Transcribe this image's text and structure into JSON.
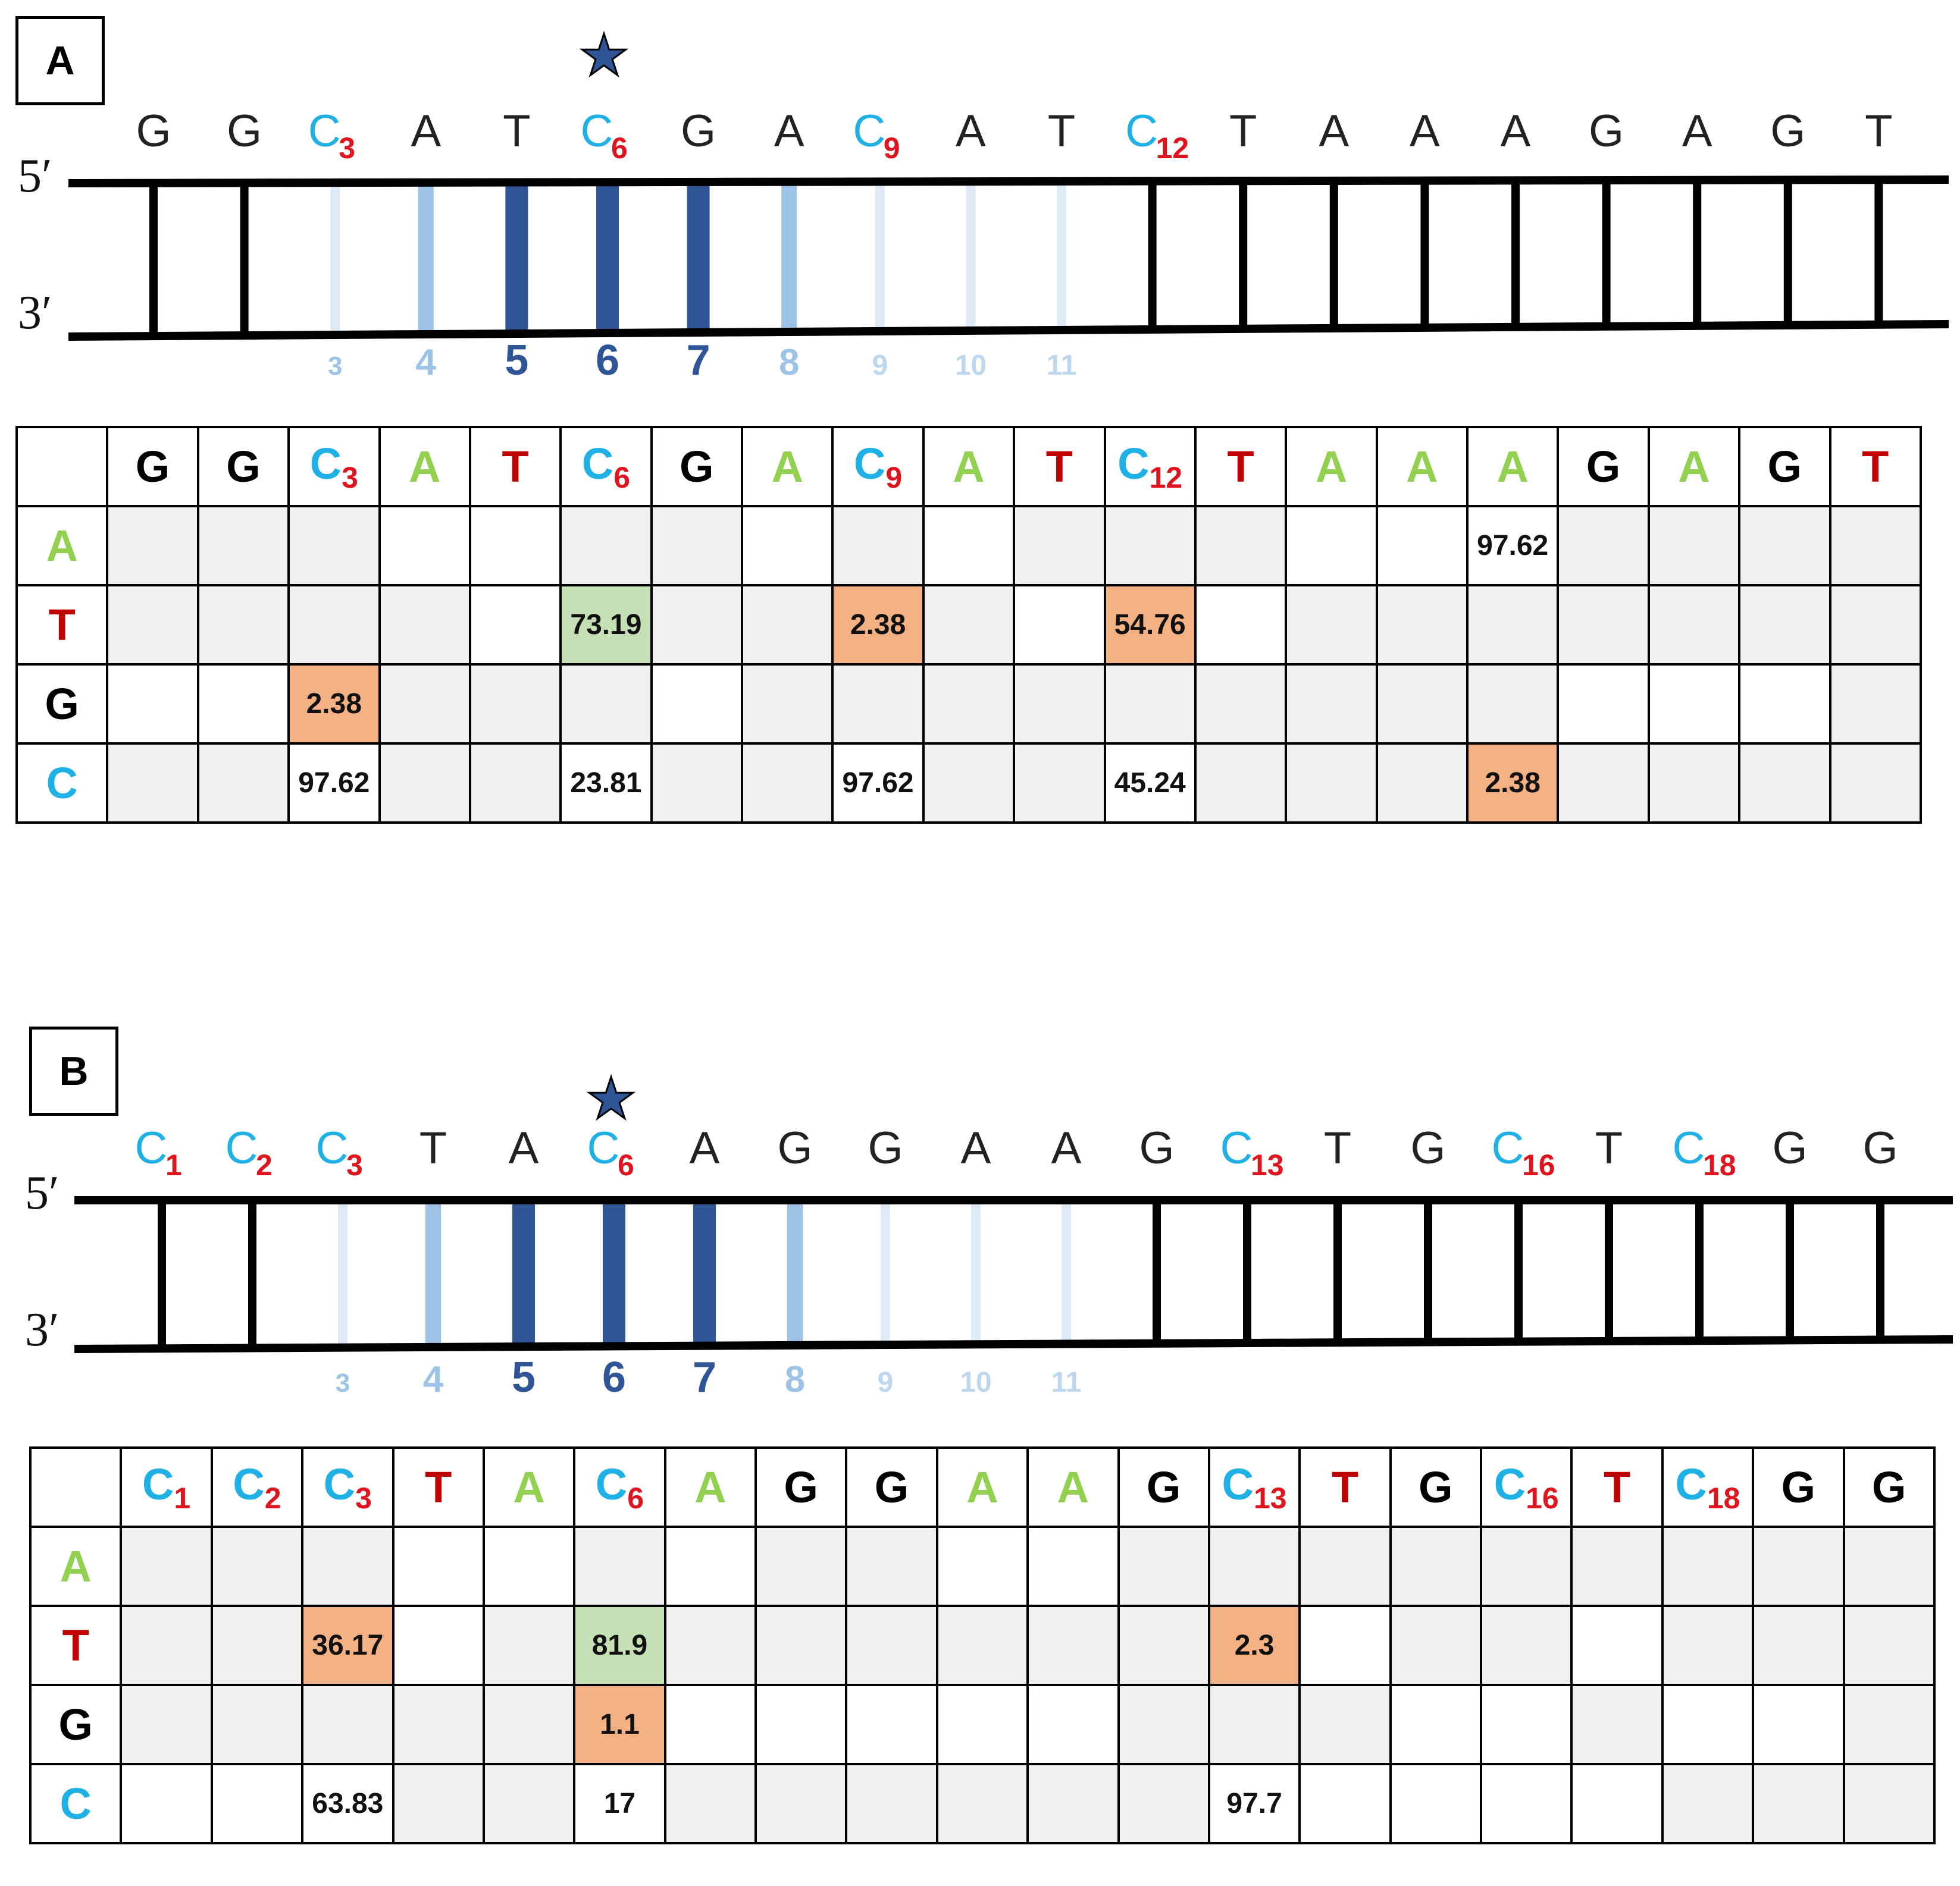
{
  "panels": [
    {
      "label": "A",
      "strand5": "5′",
      "strand3": "3′",
      "bases": [
        {
          "b": "G",
          "s": ""
        },
        {
          "b": "G",
          "s": ""
        },
        {
          "b": "C",
          "s": "3"
        },
        {
          "b": "A",
          "s": ""
        },
        {
          "b": "T",
          "s": ""
        },
        {
          "b": "C",
          "s": "6"
        },
        {
          "b": "G",
          "s": ""
        },
        {
          "b": "A",
          "s": ""
        },
        {
          "b": "C",
          "s": "9"
        },
        {
          "b": "A",
          "s": ""
        },
        {
          "b": "T",
          "s": ""
        },
        {
          "b": "C",
          "s": "12"
        },
        {
          "b": "T",
          "s": ""
        },
        {
          "b": "A",
          "s": ""
        },
        {
          "b": "A",
          "s": ""
        },
        {
          "b": "A",
          "s": ""
        },
        {
          "b": "G",
          "s": ""
        },
        {
          "b": "A",
          "s": ""
        },
        {
          "b": "G",
          "s": ""
        },
        {
          "b": "T",
          "s": ""
        }
      ],
      "positions": [
        "3",
        "4",
        "5",
        "6",
        "7",
        "8",
        "9",
        "10",
        "11"
      ],
      "table": {
        "rows": [
          "A",
          "T",
          "G",
          "C"
        ],
        "cells": {
          "A": [
            "",
            "",
            "",
            "",
            "",
            "",
            "",
            "",
            "",
            "",
            "",
            "",
            "",
            "",
            "",
            "97.62",
            "",
            "",
            "",
            ""
          ],
          "T": [
            "",
            "",
            "",
            "",
            "",
            "73.19",
            "",
            "",
            "2.38",
            "",
            "",
            "54.76",
            "",
            "",
            "",
            "",
            "",
            "",
            "",
            ""
          ],
          "G": [
            "",
            "",
            "2.38",
            "",
            "",
            "",
            "",
            "",
            "",
            "",
            "",
            "",
            "",
            "",
            "",
            "",
            "",
            "",
            "",
            ""
          ],
          "C": [
            "",
            "",
            "97.62",
            "",
            "",
            "23.81",
            "",
            "",
            "97.62",
            "",
            "",
            "45.24",
            "",
            "",
            "",
            "2.38",
            "",
            "",
            "",
            ""
          ]
        },
        "highlights": {
          "T": {
            "5": "green",
            "8": "orange",
            "11": "orange"
          },
          "G": {
            "2": "orange"
          },
          "C": {
            "15": "orange"
          }
        },
        "white": {
          "A": [
            3,
            4,
            7,
            9,
            13,
            14,
            15
          ],
          "T": [
            4,
            5,
            10,
            12
          ],
          "G": [
            0,
            1,
            6,
            16,
            17,
            18
          ],
          "C": [
            2,
            5,
            8,
            11
          ]
        }
      }
    },
    {
      "label": "B",
      "strand5": "5′",
      "strand3": "3′",
      "bases": [
        {
          "b": "C",
          "s": "1"
        },
        {
          "b": "C",
          "s": "2"
        },
        {
          "b": "C",
          "s": "3"
        },
        {
          "b": "T",
          "s": ""
        },
        {
          "b": "A",
          "s": ""
        },
        {
          "b": "C",
          "s": "6"
        },
        {
          "b": "A",
          "s": ""
        },
        {
          "b": "G",
          "s": ""
        },
        {
          "b": "G",
          "s": ""
        },
        {
          "b": "A",
          "s": ""
        },
        {
          "b": "A",
          "s": ""
        },
        {
          "b": "G",
          "s": ""
        },
        {
          "b": "C",
          "s": "13"
        },
        {
          "b": "T",
          "s": ""
        },
        {
          "b": "G",
          "s": ""
        },
        {
          "b": "C",
          "s": "16"
        },
        {
          "b": "T",
          "s": ""
        },
        {
          "b": "C",
          "s": "18"
        },
        {
          "b": "G",
          "s": ""
        },
        {
          "b": "G",
          "s": ""
        }
      ],
      "positions": [
        "3",
        "4",
        "5",
        "6",
        "7",
        "8",
        "9",
        "10",
        "11"
      ],
      "table": {
        "rows": [
          "A",
          "T",
          "G",
          "C"
        ],
        "cells": {
          "A": [
            "",
            "",
            "",
            "",
            "",
            "",
            "",
            "",
            "",
            "",
            "",
            "",
            "",
            "",
            "",
            "",
            "",
            "",
            "",
            ""
          ],
          "T": [
            "",
            "",
            "36.17",
            "",
            "",
            "81.9",
            "",
            "",
            "",
            "",
            "",
            "",
            "2.3",
            "",
            "",
            "",
            "",
            "",
            "",
            ""
          ],
          "G": [
            "",
            "",
            "",
            "",
            "",
            "1.1",
            "",
            "",
            "",
            "",
            "",
            "",
            "",
            "",
            "",
            "",
            "",
            "",
            "",
            ""
          ],
          "C": [
            "",
            "",
            "63.83",
            "",
            "",
            "17",
            "",
            "",
            "",
            "",
            "",
            "",
            "97.7",
            "",
            "",
            "",
            "",
            "",
            "",
            ""
          ]
        },
        "highlights": {
          "T": {
            "2": "orange",
            "5": "green",
            "12": "orange"
          },
          "G": {
            "5": "orange"
          }
        },
        "white": {
          "A": [
            3,
            4,
            6,
            9,
            10
          ],
          "T": [
            3,
            13,
            16
          ],
          "G": [
            6,
            7,
            8,
            9,
            10,
            14,
            15,
            17,
            18
          ],
          "C": [
            0,
            1,
            2,
            5,
            12,
            13,
            14,
            15,
            16
          ]
        }
      }
    }
  ],
  "colors": {
    "A": "#92D050",
    "T": "#C00000",
    "G": "#000000",
    "C": "#1FB0E6",
    "subscript": "#E0141E",
    "dark_bar": "#2F5597",
    "mid_bar": "#9DC3E6",
    "light_bar": "#DEEBF7",
    "green_cell": "#C5E0B4",
    "orange_cell": "#F4B183",
    "grey_cell": "#F0F0F0"
  }
}
